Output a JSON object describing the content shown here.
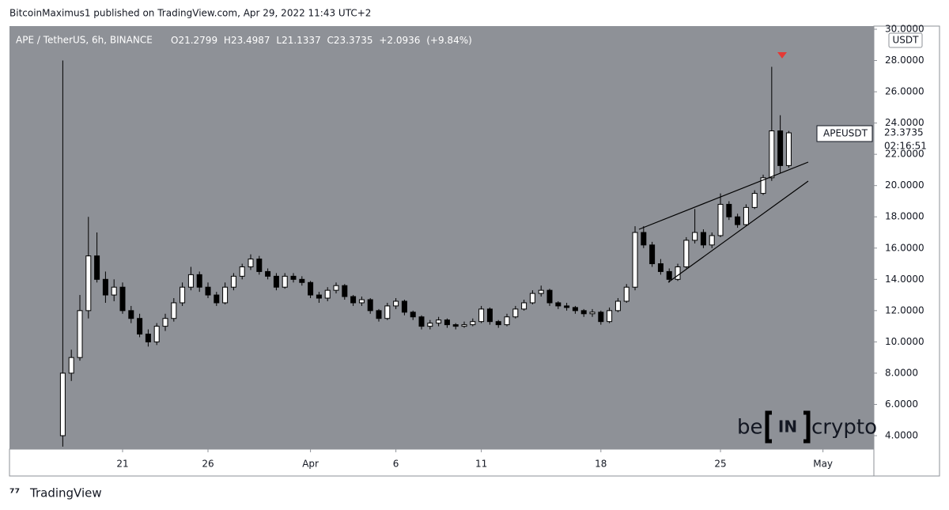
{
  "header": {
    "published": "BitcoinMaximus1 published on TradingView.com, Apr 29, 2022 11:43 UTC+2"
  },
  "footer": {
    "brand": "TradingView"
  },
  "watermark": {
    "left": "be",
    "middle": "IN",
    "right": "crypto"
  },
  "chart_data": {
    "type": "candlestick",
    "symbol": "APE / TetherUS, 6h, BINANCE",
    "ohlc_labels": [
      "O",
      "H",
      "L",
      "C"
    ],
    "change": "+2.0936",
    "change_pct": "(+9.84%)",
    "currency": "USDT",
    "ticker": "APEUSDT",
    "countdown": "02:16:51",
    "up_color": "#ffffff",
    "down_color": "#000000",
    "background": "#8e9197",
    "xlim": [
      14.38,
      64.98
    ],
    "xticks": [
      {
        "value": 21,
        "label": "21"
      },
      {
        "value": 26,
        "label": "26"
      },
      {
        "value": 32,
        "label": "Apr"
      },
      {
        "value": 37,
        "label": "6"
      },
      {
        "value": 42,
        "label": "11"
      },
      {
        "value": 49,
        "label": "18"
      },
      {
        "value": 56,
        "label": "25"
      },
      {
        "value": 62,
        "label": "May"
      }
    ],
    "ylim": [
      4,
      30
    ],
    "yticks": [
      {
        "value": 4,
        "label": "4.0000"
      },
      {
        "value": 6,
        "label": "6.0000"
      },
      {
        "value": 8,
        "label": "8.0000"
      },
      {
        "value": 10,
        "label": "10.0000"
      },
      {
        "value": 12,
        "label": "12.0000"
      },
      {
        "value": 14,
        "label": "14.0000"
      },
      {
        "value": 16,
        "label": "16.0000"
      },
      {
        "value": 18,
        "label": "18.0000"
      },
      {
        "value": 20,
        "label": "20.0000"
      },
      {
        "value": 22,
        "label": "22.0000"
      },
      {
        "value": 24,
        "label": "24.0000"
      },
      {
        "value": 26,
        "label": "26.0000"
      },
      {
        "value": 28,
        "label": "28.0000"
      },
      {
        "value": 30,
        "label": "30.0000"
      }
    ],
    "x": [
      17.5,
      18,
      18.5,
      19,
      19.5,
      20,
      20.5,
      21,
      21.5,
      22,
      22.5,
      23,
      23.5,
      24,
      24.5,
      25,
      25.5,
      26,
      26.5,
      27,
      27.5,
      28,
      28.5,
      29,
      29.5,
      30,
      30.5,
      31,
      31.5,
      32,
      32.5,
      33,
      33.5,
      34,
      34.5,
      35,
      35.5,
      36,
      36.5,
      37,
      37.5,
      38,
      38.5,
      39,
      39.5,
      40,
      40.5,
      41,
      41.5,
      42,
      42.5,
      43,
      43.5,
      44,
      44.5,
      45,
      45.5,
      46,
      46.5,
      47,
      47.5,
      48,
      48.5,
      49,
      49.5,
      50,
      50.5,
      51,
      51.5,
      52,
      52.5,
      53,
      53.5,
      54,
      54.5,
      55,
      55.5,
      56,
      56.5,
      57,
      57.5,
      58,
      58.5,
      59,
      59.5,
      60
    ],
    "ohlc": [
      [
        4,
        28,
        3.3,
        8
      ],
      [
        8,
        9.5,
        7.5,
        9
      ],
      [
        9,
        13,
        8.8,
        12
      ],
      [
        12,
        18,
        11.5,
        15.5
      ],
      [
        15.5,
        17,
        13.8,
        14
      ],
      [
        14,
        14.5,
        12.5,
        13
      ],
      [
        13,
        14,
        12.6,
        13.5
      ],
      [
        13.5,
        13.8,
        11.8,
        12
      ],
      [
        12,
        12.3,
        11.2,
        11.5
      ],
      [
        11.5,
        11.8,
        10.3,
        10.5
      ],
      [
        10.5,
        10.8,
        9.7,
        10
      ],
      [
        10,
        11.2,
        9.8,
        11
      ],
      [
        11,
        11.8,
        10.7,
        11.5
      ],
      [
        11.5,
        12.8,
        11.3,
        12.5
      ],
      [
        12.5,
        13.8,
        12.3,
        13.5
      ],
      [
        13.5,
        14.8,
        13.3,
        14.3
      ],
      [
        14.3,
        14.5,
        13.2,
        13.5
      ],
      [
        13.5,
        13.8,
        12.8,
        13
      ],
      [
        13,
        13.2,
        12.3,
        12.5
      ],
      [
        12.5,
        13.8,
        12.4,
        13.5
      ],
      [
        13.5,
        14.4,
        13.3,
        14.2
      ],
      [
        14.2,
        15,
        14,
        14.8
      ],
      [
        14.8,
        15.6,
        14.6,
        15.3
      ],
      [
        15.3,
        15.5,
        14.3,
        14.5
      ],
      [
        14.5,
        14.7,
        14,
        14.2
      ],
      [
        14.2,
        14.4,
        13.3,
        13.5
      ],
      [
        13.5,
        14.4,
        13.4,
        14.2
      ],
      [
        14.2,
        14.4,
        13.8,
        14
      ],
      [
        14,
        14.2,
        13.6,
        13.8
      ],
      [
        13.8,
        13.9,
        12.8,
        13
      ],
      [
        13,
        13.2,
        12.5,
        12.8
      ],
      [
        12.8,
        13.5,
        12.6,
        13.3
      ],
      [
        13.3,
        13.8,
        13.1,
        13.6
      ],
      [
        13.6,
        13.7,
        12.7,
        12.9
      ],
      [
        12.9,
        13,
        12.3,
        12.5
      ],
      [
        12.5,
        12.9,
        12.3,
        12.7
      ],
      [
        12.7,
        12.8,
        11.8,
        12
      ],
      [
        12,
        12.1,
        11.3,
        11.5
      ],
      [
        11.5,
        12.5,
        11.4,
        12.3
      ],
      [
        12.3,
        12.8,
        12.1,
        12.6
      ],
      [
        12.6,
        12.7,
        11.7,
        11.9
      ],
      [
        11.9,
        12,
        11.4,
        11.6
      ],
      [
        11.6,
        11.7,
        10.8,
        11
      ],
      [
        11,
        11.4,
        10.8,
        11.2
      ],
      [
        11.2,
        11.6,
        11,
        11.4
      ],
      [
        11.4,
        11.5,
        10.9,
        11.1
      ],
      [
        11.1,
        11.2,
        10.8,
        11
      ],
      [
        11,
        11.3,
        10.9,
        11.1
      ],
      [
        11.1,
        11.5,
        11,
        11.3
      ],
      [
        11.3,
        12.3,
        11.2,
        12.1
      ],
      [
        12.1,
        12.2,
        11.1,
        11.3
      ],
      [
        11.3,
        11.4,
        10.9,
        11.1
      ],
      [
        11.1,
        11.8,
        11,
        11.6
      ],
      [
        11.6,
        12.3,
        11.5,
        12.1
      ],
      [
        12.1,
        12.7,
        12,
        12.5
      ],
      [
        12.5,
        13.3,
        12.4,
        13.1
      ],
      [
        13.1,
        13.6,
        12.9,
        13.3
      ],
      [
        13.3,
        13.4,
        12.3,
        12.5
      ],
      [
        12.5,
        12.6,
        12.1,
        12.3
      ],
      [
        12.3,
        12.5,
        12,
        12.2
      ],
      [
        12.2,
        12.3,
        11.8,
        12
      ],
      [
        12,
        12.1,
        11.6,
        11.8
      ],
      [
        11.8,
        12.1,
        11.6,
        11.9
      ],
      [
        11.9,
        12,
        11.1,
        11.3
      ],
      [
        11.3,
        12.2,
        11.2,
        12
      ],
      [
        12,
        12.8,
        11.9,
        12.6
      ],
      [
        12.6,
        13.7,
        12.5,
        13.5
      ],
      [
        13.5,
        17.4,
        13.3,
        17
      ],
      [
        17,
        17.4,
        16,
        16.2
      ],
      [
        16.2,
        16.4,
        14.8,
        15
      ],
      [
        15,
        15.3,
        14.3,
        14.5
      ],
      [
        14.5,
        14.7,
        13.8,
        14
      ],
      [
        14,
        15,
        13.9,
        14.8
      ],
      [
        14.8,
        16.7,
        14.7,
        16.5
      ],
      [
        16.5,
        18.5,
        16.3,
        17
      ],
      [
        17,
        17.2,
        16,
        16.2
      ],
      [
        16.2,
        17,
        16,
        16.8
      ],
      [
        16.8,
        19.5,
        16.7,
        18.8
      ],
      [
        18.8,
        19,
        17.8,
        18
      ],
      [
        18,
        18.2,
        17.3,
        17.5
      ],
      [
        17.5,
        18.8,
        17.4,
        18.6
      ],
      [
        18.6,
        19.7,
        18.5,
        19.5
      ],
      [
        19.5,
        20.7,
        19.4,
        20.5
      ],
      [
        20.5,
        27.6,
        20.3,
        23.5
      ],
      [
        23.5,
        24.5,
        20.8,
        21.2799
      ],
      [
        21.2799,
        23.4987,
        21.1337,
        23.3735
      ]
    ]
  }
}
